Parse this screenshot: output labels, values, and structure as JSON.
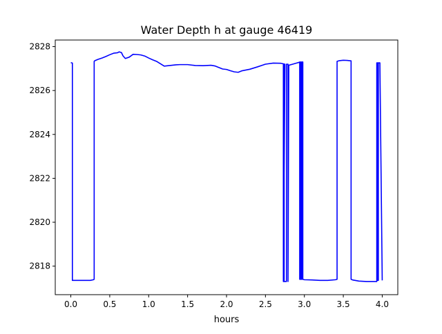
{
  "chart_data": {
    "type": "line",
    "title": "Water Depth h at gauge 46419",
    "xlabel": "hours",
    "ylabel": "",
    "xlim": [
      -0.2,
      4.2
    ],
    "ylim": [
      2816.7,
      2828.3
    ],
    "x_ticks": [
      0.0,
      0.5,
      1.0,
      1.5,
      2.0,
      2.5,
      3.0,
      3.5,
      4.0
    ],
    "x_tick_labels": [
      "0.0",
      "0.5",
      "1.0",
      "1.5",
      "2.0",
      "2.5",
      "3.0",
      "3.5",
      "4.0"
    ],
    "y_ticks": [
      2818,
      2820,
      2822,
      2824,
      2826,
      2828
    ],
    "y_tick_labels": [
      "2818",
      "2820",
      "2822",
      "2824",
      "2826",
      "2828"
    ],
    "grid": false,
    "legend": "none",
    "series": [
      {
        "color": "#0000ff",
        "x": [
          0.0,
          0.02,
          0.02,
          0.05,
          0.1,
          0.15,
          0.2,
          0.25,
          0.29,
          0.3,
          0.3,
          0.31,
          0.35,
          0.4,
          0.45,
          0.5,
          0.55,
          0.6,
          0.62,
          0.65,
          0.67,
          0.7,
          0.75,
          0.8,
          0.85,
          0.9,
          0.95,
          1.0,
          1.05,
          1.1,
          1.15,
          1.2,
          1.25,
          1.3,
          1.35,
          1.4,
          1.5,
          1.6,
          1.7,
          1.8,
          1.85,
          1.9,
          1.95,
          2.0,
          2.05,
          2.1,
          2.15,
          2.2,
          2.3,
          2.4,
          2.5,
          2.6,
          2.7,
          2.75,
          2.73,
          2.73,
          2.74,
          2.74,
          2.77,
          2.77,
          2.79,
          2.79,
          2.8,
          2.85,
          2.9,
          2.93,
          2.94,
          2.94,
          2.95,
          2.95,
          2.96,
          2.96,
          2.97,
          2.97,
          2.98,
          2.98,
          3.0,
          3.1,
          3.2,
          3.3,
          3.4,
          3.42,
          3.42,
          3.45,
          3.5,
          3.55,
          3.6,
          3.6,
          3.62,
          3.7,
          3.8,
          3.93,
          3.93,
          3.94,
          3.94,
          3.95,
          3.95,
          3.97,
          4.0
        ],
        "y": [
          2827.27,
          2827.25,
          2817.35,
          2817.35,
          2817.35,
          2817.35,
          2817.35,
          2817.35,
          2817.38,
          2817.4,
          2827.33,
          2827.36,
          2827.42,
          2827.48,
          2827.55,
          2827.63,
          2827.7,
          2827.72,
          2827.76,
          2827.73,
          2827.58,
          2827.46,
          2827.52,
          2827.65,
          2827.64,
          2827.62,
          2827.57,
          2827.48,
          2827.4,
          2827.33,
          2827.22,
          2827.11,
          2827.13,
          2827.15,
          2827.17,
          2827.18,
          2827.18,
          2827.14,
          2827.13,
          2827.15,
          2827.12,
          2827.05,
          2826.98,
          2826.96,
          2826.9,
          2826.85,
          2826.83,
          2826.9,
          2826.97,
          2827.08,
          2827.2,
          2827.25,
          2827.24,
          2827.2,
          2817.3,
          2827.2,
          2827.2,
          2817.3,
          2817.3,
          2827.2,
          2827.2,
          2817.3,
          2827.15,
          2827.2,
          2827.25,
          2827.28,
          2827.3,
          2817.4,
          2817.4,
          2827.3,
          2827.3,
          2817.4,
          2817.4,
          2827.3,
          2827.3,
          2817.4,
          2817.38,
          2817.37,
          2817.35,
          2817.35,
          2817.38,
          2817.4,
          2827.33,
          2827.36,
          2827.38,
          2827.37,
          2827.35,
          2817.4,
          2817.37,
          2817.32,
          2817.3,
          2817.3,
          2827.26,
          2827.26,
          2817.35,
          2817.35,
          2827.26,
          2827.26,
          2817.35
        ]
      }
    ]
  }
}
